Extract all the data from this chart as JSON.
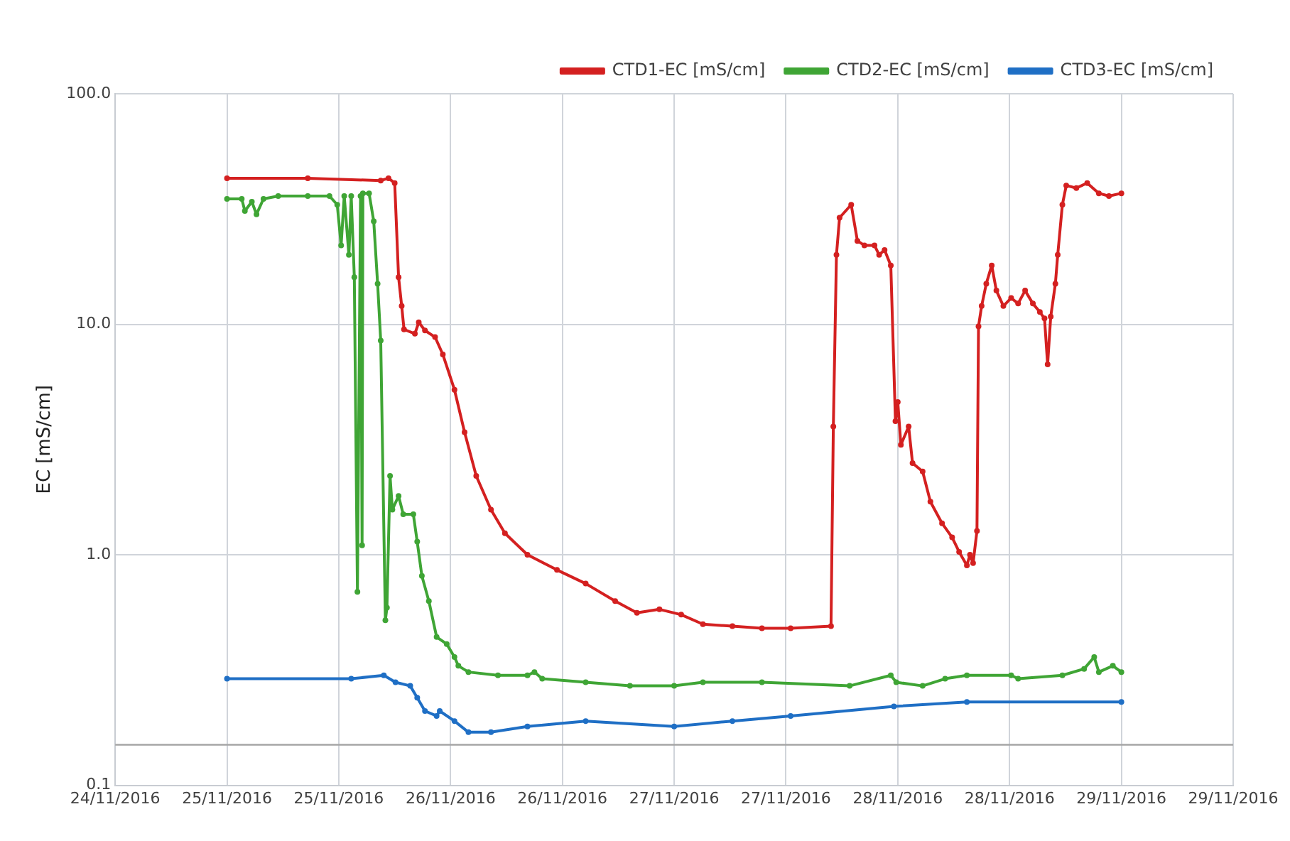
{
  "chart_data": {
    "type": "line",
    "ylabel": "EC [mS/cm]",
    "log": "y",
    "grid": true,
    "legend": "top right",
    "marker": "circle",
    "line_style": "solid",
    "xlim": [
      "2016-11-24T12:00",
      "2016-11-29T12:00"
    ],
    "xticks": [
      {
        "value": "2016-11-24T12:00",
        "label": "24/11/2016"
      },
      {
        "value": "2016-11-25T00:00",
        "label": "25/11/2016"
      },
      {
        "value": "2016-11-25T12:00",
        "label": "25/11/2016"
      },
      {
        "value": "2016-11-26T00:00",
        "label": "26/11/2016"
      },
      {
        "value": "2016-11-26T12:00",
        "label": "26/11/2016"
      },
      {
        "value": "2016-11-27T00:00",
        "label": "27/11/2016"
      },
      {
        "value": "2016-11-27T12:00",
        "label": "27/11/2016"
      },
      {
        "value": "2016-11-28T00:00",
        "label": "28/11/2016"
      },
      {
        "value": "2016-11-28T12:00",
        "label": "28/11/2016"
      },
      {
        "value": "2016-11-29T00:00",
        "label": "29/11/2016"
      },
      {
        "value": "2016-11-29T12:00",
        "label": "29/11/2016"
      }
    ],
    "ylim": [
      0.1,
      100
    ],
    "yticks": [
      {
        "value": 0.1,
        "label": "0.1"
      },
      {
        "value": 1,
        "label": "1.0"
      },
      {
        "value": 10,
        "label": "10.0"
      },
      {
        "value": 100,
        "label": "100.0"
      }
    ],
    "ref_lines": [
      {
        "axis": "y",
        "value": 0.15,
        "color": "#a6a6a6"
      }
    ],
    "series": [
      {
        "name": "CTD1-EC [mS/cm]",
        "color": "#d42020",
        "x": [
          "2016-11-25T00:00",
          "2016-11-25T08:40",
          "2016-11-25T16:30",
          "2016-11-25T17:20",
          "2016-11-25T18:00",
          "2016-11-25T18:25",
          "2016-11-25T18:45",
          "2016-11-25T19:00",
          "2016-11-25T20:10",
          "2016-11-25T20:35",
          "2016-11-25T21:15",
          "2016-11-25T22:20",
          "2016-11-25T23:10",
          "2016-11-26T00:25",
          "2016-11-26T01:30",
          "2016-11-26T02:45",
          "2016-11-26T04:20",
          "2016-11-26T05:50",
          "2016-11-26T08:15",
          "2016-11-26T11:25",
          "2016-11-26T14:30",
          "2016-11-26T17:40",
          "2016-11-26T20:00",
          "2016-11-26T22:25",
          "2016-11-27T00:45",
          "2016-11-27T03:05",
          "2016-11-27T06:15",
          "2016-11-27T09:25",
          "2016-11-27T12:30",
          "2016-11-27T16:50",
          "2016-11-27T17:05",
          "2016-11-27T17:25",
          "2016-11-27T17:45",
          "2016-11-27T19:00",
          "2016-11-27T19:40",
          "2016-11-27T20:25",
          "2016-11-27T21:30",
          "2016-11-27T22:00",
          "2016-11-27T22:35",
          "2016-11-27T23:15",
          "2016-11-27T23:45",
          "2016-11-28T00:00",
          "2016-11-28T00:20",
          "2016-11-28T01:10",
          "2016-11-28T01:35",
          "2016-11-28T02:40",
          "2016-11-28T03:30",
          "2016-11-28T04:45",
          "2016-11-28T05:50",
          "2016-11-28T06:35",
          "2016-11-28T07:25",
          "2016-11-28T07:45",
          "2016-11-28T08:05",
          "2016-11-28T08:30",
          "2016-11-28T08:40",
          "2016-11-28T09:00",
          "2016-11-28T09:30",
          "2016-11-28T10:05",
          "2016-11-28T10:35",
          "2016-11-28T11:20",
          "2016-11-28T12:10",
          "2016-11-28T12:55",
          "2016-11-28T13:40",
          "2016-11-28T14:30",
          "2016-11-28T15:15",
          "2016-11-28T15:45",
          "2016-11-28T16:05",
          "2016-11-28T16:25",
          "2016-11-28T16:55",
          "2016-11-28T17:10",
          "2016-11-28T17:40",
          "2016-11-28T18:05",
          "2016-11-28T19:10",
          "2016-11-28T20:20",
          "2016-11-28T21:35",
          "2016-11-28T22:40",
          "2016-11-29T00:00"
        ],
        "values": [
          43,
          43,
          42,
          43,
          41,
          16,
          12,
          9.5,
          9.1,
          10.2,
          9.4,
          8.8,
          7.4,
          5.2,
          3.4,
          2.2,
          1.57,
          1.24,
          1.0,
          0.86,
          0.75,
          0.63,
          0.56,
          0.58,
          0.55,
          0.5,
          0.49,
          0.48,
          0.48,
          0.49,
          3.6,
          20,
          29,
          33,
          23,
          22,
          22,
          20,
          21,
          18,
          3.8,
          4.6,
          3.0,
          3.6,
          2.5,
          2.3,
          1.7,
          1.37,
          1.19,
          1.03,
          0.9,
          1.0,
          0.92,
          1.27,
          9.8,
          12,
          15,
          18,
          14,
          12,
          13,
          12.3,
          14,
          12.3,
          11.3,
          10.6,
          6.7,
          10.8,
          15,
          20,
          33,
          40,
          39,
          41,
          37,
          36,
          37
        ]
      },
      {
        "name": "CTD2-EC [mS/cm]",
        "color": "#3fa535",
        "x": [
          "2016-11-25T00:00",
          "2016-11-25T01:35",
          "2016-11-25T01:55",
          "2016-11-25T02:40",
          "2016-11-25T03:10",
          "2016-11-25T03:55",
          "2016-11-25T05:30",
          "2016-11-25T08:40",
          "2016-11-25T11:00",
          "2016-11-25T11:50",
          "2016-11-25T12:15",
          "2016-11-25T12:35",
          "2016-11-25T13:05",
          "2016-11-25T13:20",
          "2016-11-25T13:40",
          "2016-11-25T14:00",
          "2016-11-25T14:20",
          "2016-11-25T14:30",
          "2016-11-25T14:35",
          "2016-11-25T15:15",
          "2016-11-25T15:45",
          "2016-11-25T16:10",
          "2016-11-25T16:30",
          "2016-11-25T17:00",
          "2016-11-25T17:10",
          "2016-11-25T17:30",
          "2016-11-25T17:45",
          "2016-11-25T18:25",
          "2016-11-25T18:55",
          "2016-11-25T20:00",
          "2016-11-25T20:25",
          "2016-11-25T20:55",
          "2016-11-25T21:40",
          "2016-11-25T22:30",
          "2016-11-25T23:35",
          "2016-11-26T00:25",
          "2016-11-26T00:50",
          "2016-11-26T01:55",
          "2016-11-26T05:05",
          "2016-11-26T08:15",
          "2016-11-26T09:00",
          "2016-11-26T09:50",
          "2016-11-26T14:30",
          "2016-11-26T19:15",
          "2016-11-27T00:00",
          "2016-11-27T03:05",
          "2016-11-27T09:25",
          "2016-11-27T18:50",
          "2016-11-27T23:15",
          "2016-11-27T23:50",
          "2016-11-28T02:40",
          "2016-11-28T05:05",
          "2016-11-28T07:25",
          "2016-11-28T12:10",
          "2016-11-28T12:55",
          "2016-11-28T17:40",
          "2016-11-28T20:00",
          "2016-11-28T21:05",
          "2016-11-28T21:35",
          "2016-11-28T23:05",
          "2016-11-29T00:00"
        ],
        "values": [
          35,
          35,
          31,
          34,
          30,
          35,
          36,
          36,
          36,
          33,
          22,
          36,
          20,
          36,
          16,
          0.69,
          36,
          1.1,
          37,
          37,
          28,
          15,
          8.5,
          0.52,
          0.59,
          2.2,
          1.57,
          1.8,
          1.5,
          1.5,
          1.14,
          0.81,
          0.63,
          0.44,
          0.41,
          0.36,
          0.33,
          0.31,
          0.3,
          0.3,
          0.31,
          0.29,
          0.28,
          0.27,
          0.27,
          0.28,
          0.28,
          0.27,
          0.3,
          0.28,
          0.27,
          0.29,
          0.3,
          0.3,
          0.29,
          0.3,
          0.32,
          0.36,
          0.31,
          0.33,
          0.31
        ]
      },
      {
        "name": "CTD3-EC [mS/cm]",
        "color": "#1f6fc5",
        "x": [
          "2016-11-25T00:00",
          "2016-11-25T13:20",
          "2016-11-25T16:50",
          "2016-11-25T18:05",
          "2016-11-25T19:40",
          "2016-11-25T20:25",
          "2016-11-25T21:15",
          "2016-11-25T22:30",
          "2016-11-25T22:50",
          "2016-11-26T00:25",
          "2016-11-26T01:55",
          "2016-11-26T04:20",
          "2016-11-26T08:15",
          "2016-11-26T14:30",
          "2016-11-27T00:00",
          "2016-11-27T06:15",
          "2016-11-27T12:30",
          "2016-11-27T23:35",
          "2016-11-28T07:25",
          "2016-11-29T00:00"
        ],
        "values": [
          0.29,
          0.29,
          0.3,
          0.28,
          0.27,
          0.24,
          0.21,
          0.2,
          0.21,
          0.19,
          0.17,
          0.17,
          0.18,
          0.19,
          0.18,
          0.19,
          0.2,
          0.22,
          0.23,
          0.23
        ]
      }
    ]
  }
}
